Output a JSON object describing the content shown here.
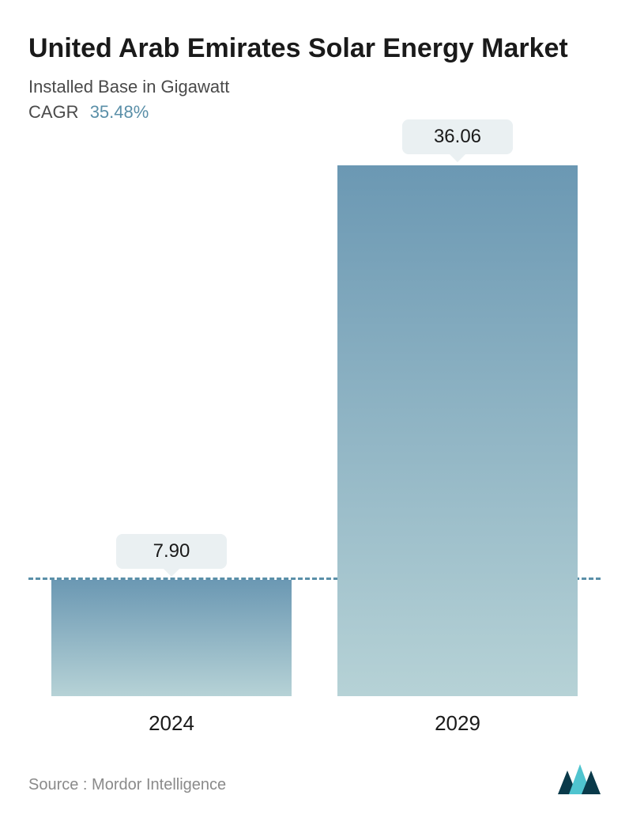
{
  "header": {
    "title": "United Arab Emirates Solar Energy Market",
    "subtitle": "Installed Base in Gigawatt",
    "cagr_label": "CAGR",
    "cagr_value": "35.48%",
    "cagr_value_color": "#5a8fa8",
    "title_color": "#1a1a1a",
    "title_fontsize": 34,
    "subtitle_color": "#4a4a4a",
    "subtitle_fontsize": 22
  },
  "chart": {
    "type": "bar",
    "categories": [
      "2024",
      "2029"
    ],
    "values": [
      7.9,
      36.06
    ],
    "value_labels": [
      "7.90",
      "36.06"
    ],
    "y_max": 38,
    "baseline_value": 7.9,
    "baseline_color": "#5a8fa8",
    "baseline_dash": "dashed",
    "bar_gradient_top": "#6b98b3",
    "bar_gradient_bottom": "#b6d2d6",
    "value_label_bg": "#eaf0f2",
    "value_label_fontsize": 24,
    "value_label_color": "#1a1a1a",
    "x_label_fontsize": 26,
    "x_label_color": "#1a1a1a",
    "background_color": "#ffffff",
    "bar_width_pct": 42
  },
  "footer": {
    "source_label": "Source :",
    "source_value": "Mordor Intelligence",
    "source_color": "#8a8a8a",
    "source_fontsize": 20,
    "logo_colors": {
      "dark": "#0a3a4a",
      "light": "#4fc4cf"
    }
  }
}
